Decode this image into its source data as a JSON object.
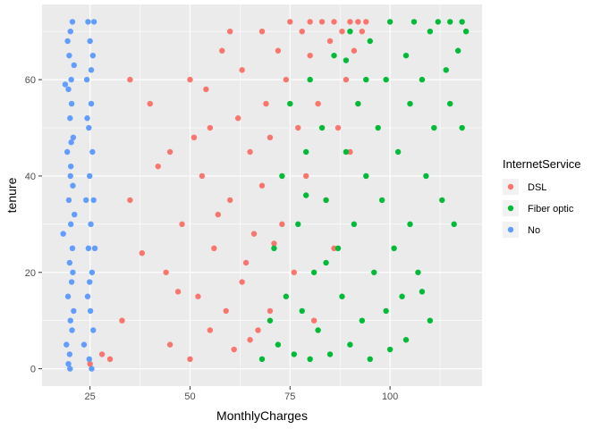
{
  "chart_data": {
    "type": "scatter",
    "xlabel": "MonthlyCharges",
    "ylabel": "tenure",
    "xlim": [
      13,
      123
    ],
    "ylim": [
      -3.6,
      75.6
    ],
    "x_ticks": [
      25,
      50,
      75,
      100
    ],
    "y_ticks": [
      0,
      20,
      40,
      60
    ],
    "grid": true,
    "legend": {
      "title": "InternetService",
      "placement": "right",
      "entries": [
        "DSL",
        "Fiber optic",
        "No"
      ]
    },
    "colors": {
      "DSL": "#F8766D",
      "Fiber optic": "#00BA38",
      "No": "#619CFF",
      "panel": "#EBEBEB",
      "grid": "#FFFFFF"
    },
    "series": [
      {
        "name": "DSL",
        "x": [
          25,
          28,
          30,
          33,
          35,
          40,
          44,
          45,
          45,
          48,
          50,
          50,
          52,
          53,
          55,
          55,
          56,
          58,
          59,
          60,
          60,
          61,
          62,
          63,
          63,
          65,
          65,
          66,
          68,
          68,
          69,
          70,
          70,
          72,
          73,
          74,
          75,
          76,
          77,
          78,
          79,
          80,
          80,
          81,
          82,
          83,
          84,
          85,
          86,
          86,
          87,
          88,
          89,
          90,
          90,
          91,
          92,
          93,
          94,
          35,
          38,
          42,
          47,
          51,
          54,
          57,
          64,
          67,
          71
        ],
        "y": [
          1,
          3,
          2,
          10,
          35,
          55,
          20,
          5,
          45,
          30,
          2,
          60,
          15,
          40,
          8,
          50,
          25,
          66,
          12,
          35,
          70,
          4,
          52,
          18,
          62,
          45,
          6,
          28,
          70,
          38,
          55,
          12,
          48,
          66,
          30,
          60,
          72,
          20,
          50,
          70,
          40,
          65,
          72,
          10,
          55,
          72,
          35,
          68,
          25,
          72,
          50,
          70,
          60,
          72,
          45,
          66,
          72,
          70,
          72,
          60,
          24,
          42,
          16,
          48,
          58,
          32,
          22,
          8,
          26
        ]
      },
      {
        "name": "Fiber optic",
        "x": [
          68,
          70,
          71,
          72,
          73,
          74,
          75,
          76,
          77,
          78,
          79,
          80,
          80,
          81,
          82,
          83,
          84,
          85,
          86,
          87,
          88,
          89,
          90,
          90,
          91,
          92,
          93,
          94,
          95,
          95,
          96,
          97,
          98,
          99,
          100,
          100,
          101,
          102,
          103,
          104,
          105,
          105,
          106,
          107,
          108,
          109,
          110,
          110,
          111,
          112,
          113,
          114,
          115,
          115,
          116,
          117,
          118,
          118,
          119,
          108,
          104,
          99,
          94,
          89,
          84,
          79
        ],
        "y": [
          2,
          10,
          25,
          5,
          40,
          15,
          55,
          3,
          30,
          12,
          45,
          2,
          60,
          20,
          8,
          50,
          35,
          3,
          65,
          25,
          15,
          45,
          5,
          70,
          30,
          55,
          10,
          40,
          2,
          68,
          20,
          50,
          35,
          60,
          4,
          72,
          25,
          45,
          15,
          65,
          30,
          55,
          72,
          20,
          60,
          40,
          10,
          70,
          50,
          72,
          35,
          62,
          55,
          72,
          30,
          66,
          50,
          72,
          70,
          16,
          6,
          12,
          60,
          64,
          22,
          36
        ]
      },
      {
        "name": "No",
        "x": [
          18.3,
          18.8,
          19.1,
          19.3,
          19.5,
          19.6,
          19.7,
          19.8,
          19.9,
          20.0,
          20.0,
          20.1,
          20.1,
          20.2,
          20.2,
          20.3,
          20.4,
          20.4,
          20.5,
          20.6,
          20.6,
          20.7,
          20.8,
          20.9,
          21.0,
          21.1,
          19.4,
          19.9,
          20.3,
          20.7,
          19.6,
          20.1,
          23.5,
          24.0,
          24.2,
          24.4,
          24.5,
          24.6,
          24.7,
          24.8,
          24.9,
          25.0,
          25.1,
          25.2,
          25.3,
          25.4,
          25.5,
          25.6,
          25.7,
          25.8,
          25.9,
          26.0,
          26.2,
          24.3,
          24.9,
          25.3
        ],
        "y": [
          28,
          59,
          5,
          45,
          15,
          1,
          35,
          65,
          22,
          52,
          0,
          10,
          70,
          30,
          42,
          60,
          18,
          55,
          8,
          25,
          72,
          38,
          48,
          12,
          63,
          32,
          68,
          3,
          47,
          20,
          58,
          40,
          5,
          35,
          60,
          15,
          72,
          25,
          50,
          2,
          40,
          68,
          12,
          30,
          55,
          0,
          20,
          45,
          65,
          8,
          35,
          72,
          25,
          52,
          18,
          62
        ]
      }
    ]
  }
}
